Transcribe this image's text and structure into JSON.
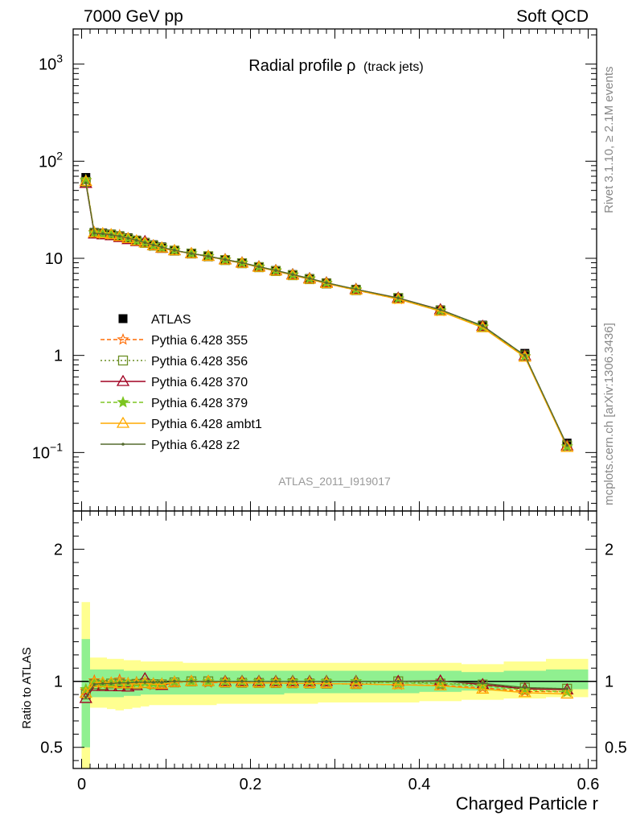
{
  "header": {
    "left": "7000 GeV pp",
    "right": "Soft QCD"
  },
  "side_labels": {
    "rivet": "Rivet 3.1.10, ≥ 2.1M events",
    "mcplots": "mcplots.cern.ch [arXiv:1306.3436]"
  },
  "chart_data": [
    {
      "panel": "main",
      "type": "line",
      "title": "Radial profile",
      "title_symbol": "ρ",
      "title_suffix": "(track jets)",
      "analysis_label": "ATLAS_2011_I919017",
      "yscale": "log",
      "xlim": [
        -0.01,
        0.61
      ],
      "ylim": [
        0.025,
        2300
      ],
      "y_ticks": [
        {
          "value": 1000,
          "mantissa": "10",
          "exp": "3"
        },
        {
          "value": 100,
          "mantissa": "10",
          "exp": "2"
        },
        {
          "value": 10,
          "mantissa": "10",
          "exp": ""
        },
        {
          "value": 1,
          "mantissa": "1",
          "exp": ""
        },
        {
          "value": 0.1,
          "mantissa": "10",
          "exp": "−1"
        }
      ],
      "x": [
        0.005,
        0.015,
        0.025,
        0.035,
        0.045,
        0.055,
        0.065,
        0.075,
        0.085,
        0.095,
        0.11,
        0.13,
        0.15,
        0.17,
        0.19,
        0.21,
        0.23,
        0.25,
        0.27,
        0.29,
        0.325,
        0.375,
        0.425,
        0.475,
        0.525,
        0.575
      ],
      "legend_placement": "left-middle",
      "series": [
        {
          "name": "ATLAS",
          "color": "#000000",
          "marker": "square",
          "values": [
            68,
            18.5,
            18.2,
            17.8,
            17.1,
            16.3,
            15.4,
            14.6,
            13.8,
            13.1,
            12.1,
            11.2,
            10.5,
            9.7,
            9.0,
            8.2,
            7.5,
            6.8,
            6.2,
            5.6,
            4.8,
            3.9,
            2.95,
            2.05,
            1.05,
            0.125
          ]
        },
        {
          "name": "Pythia 6.428 355",
          "color": "#ff6a00",
          "marker": "star-open",
          "line": "dashed",
          "values": [
            63.2,
            18.6,
            17.8,
            17.6,
            17.3,
            16.1,
            15.3,
            14.5,
            13.4,
            12.8,
            12.0,
            11.2,
            10.4,
            9.6,
            8.9,
            8.1,
            7.4,
            6.7,
            6.1,
            5.5,
            4.7,
            3.8,
            2.86,
            1.95,
            0.97,
            0.115
          ]
        },
        {
          "name": "Pythia 6.428 356",
          "color": "#6b8e23",
          "marker": "square-open",
          "line": "dotted",
          "values": [
            61.2,
            18.1,
            17.7,
            17.5,
            16.8,
            15.9,
            15.1,
            14.4,
            13.5,
            12.8,
            12.0,
            11.2,
            10.5,
            9.6,
            8.9,
            8.1,
            7.4,
            6.7,
            6.1,
            5.5,
            4.7,
            3.9,
            2.9,
            2.0,
            1.0,
            0.118
          ]
        },
        {
          "name": "Pythia 6.428 370",
          "color": "#a00020",
          "marker": "triangle-open",
          "line": "solid",
          "values": [
            59.2,
            17.8,
            17.5,
            17.1,
            16.4,
            15.6,
            14.9,
            14.9,
            13.5,
            12.7,
            12.0,
            11.2,
            10.5,
            9.7,
            9.0,
            8.2,
            7.5,
            6.8,
            6.2,
            5.6,
            4.8,
            3.9,
            2.96,
            2.0,
            0.99,
            0.117
          ]
        },
        {
          "name": "Pythia 6.428 379",
          "color": "#7cc520",
          "marker": "star",
          "line": "dashed",
          "values": [
            63.9,
            18.3,
            17.8,
            17.5,
            16.9,
            16.1,
            15.2,
            14.5,
            13.6,
            12.9,
            12.1,
            11.2,
            10.5,
            9.7,
            9.0,
            8.2,
            7.5,
            6.8,
            6.2,
            5.6,
            4.8,
            3.85,
            2.9,
            1.98,
            0.98,
            0.115
          ]
        },
        {
          "name": "Pythia 6.428 ambt1",
          "color": "#ffaa00",
          "marker": "triangle-open",
          "line": "solid",
          "values": [
            61.9,
            18.3,
            18.0,
            17.6,
            16.8,
            16.0,
            15.1,
            14.4,
            13.5,
            12.8,
            12.0,
            11.2,
            10.5,
            9.6,
            8.9,
            8.1,
            7.4,
            6.7,
            6.1,
            5.5,
            4.7,
            3.8,
            2.85,
            1.93,
            0.96,
            0.113
          ]
        },
        {
          "name": "Pythia 6.428 z2",
          "color": "#556b2f",
          "marker": "dot",
          "line": "solid",
          "values": [
            59.8,
            18.1,
            17.9,
            17.5,
            16.9,
            16.1,
            15.3,
            14.5,
            13.7,
            13.0,
            12.1,
            11.2,
            10.5,
            9.7,
            9.0,
            8.2,
            7.5,
            6.8,
            6.2,
            5.6,
            4.8,
            3.9,
            2.95,
            2.02,
            1.0,
            0.118
          ]
        }
      ]
    },
    {
      "panel": "ratio",
      "type": "line",
      "ylabel": "Ratio to ATLAS",
      "xlabel": "Charged Particle r",
      "xlim": [
        -0.01,
        0.61
      ],
      "ylim": [
        0.34,
        2.29
      ],
      "x_ticks": [
        {
          "value": 0,
          "label": "0"
        },
        {
          "value": 0.2,
          "label": "0.2"
        },
        {
          "value": 0.4,
          "label": "0.4"
        },
        {
          "value": 0.6,
          "label": "0.6"
        }
      ],
      "y_ticks": [
        {
          "value": 2,
          "label": "2"
        },
        {
          "value": 1,
          "label": "1"
        },
        {
          "value": 0.5,
          "label": "0.5"
        }
      ],
      "bin_edges": [
        0,
        0.01,
        0.02,
        0.03,
        0.04,
        0.05,
        0.06,
        0.07,
        0.08,
        0.09,
        0.1,
        0.12,
        0.14,
        0.16,
        0.18,
        0.2,
        0.22,
        0.24,
        0.26,
        0.28,
        0.3,
        0.35,
        0.4,
        0.45,
        0.5,
        0.55,
        0.6
      ],
      "band_yellow_lo": [
        0.0,
        0.8,
        0.8,
        0.79,
        0.78,
        0.79,
        0.8,
        0.81,
        0.82,
        0.82,
        0.82,
        0.82,
        0.82,
        0.83,
        0.83,
        0.83,
        0.83,
        0.83,
        0.83,
        0.84,
        0.84,
        0.84,
        0.85,
        0.86,
        0.87,
        0.88
      ],
      "band_yellow_hi": [
        1.6,
        1.18,
        1.18,
        1.17,
        1.17,
        1.16,
        1.16,
        1.15,
        1.15,
        1.15,
        1.15,
        1.14,
        1.14,
        1.14,
        1.14,
        1.14,
        1.14,
        1.14,
        1.14,
        1.14,
        1.14,
        1.14,
        1.14,
        1.13,
        1.15,
        1.17
      ],
      "band_green_lo": [
        0.5,
        0.88,
        0.88,
        0.88,
        0.88,
        0.89,
        0.89,
        0.9,
        0.9,
        0.9,
        0.9,
        0.9,
        0.9,
        0.9,
        0.9,
        0.9,
        0.9,
        0.91,
        0.91,
        0.91,
        0.91,
        0.91,
        0.92,
        0.93,
        0.94,
        0.94
      ],
      "band_green_hi": [
        1.32,
        1.09,
        1.09,
        1.09,
        1.09,
        1.08,
        1.08,
        1.08,
        1.08,
        1.08,
        1.08,
        1.08,
        1.08,
        1.08,
        1.08,
        1.08,
        1.08,
        1.08,
        1.08,
        1.08,
        1.08,
        1.08,
        1.08,
        1.07,
        1.08,
        1.09
      ],
      "band_colors": {
        "yellow": "#ffff90",
        "green": "#90f090"
      }
    }
  ]
}
